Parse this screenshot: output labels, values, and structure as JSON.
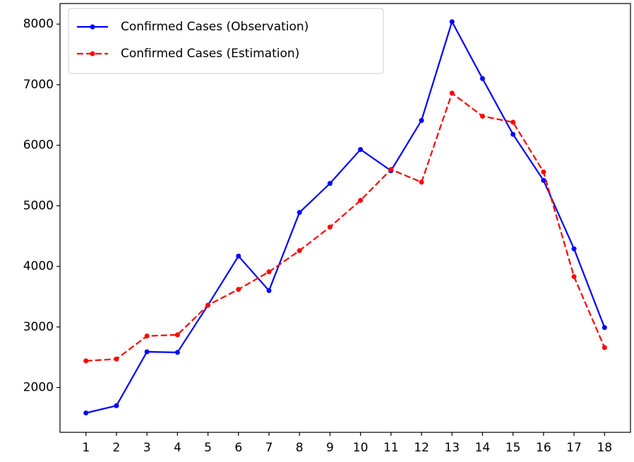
{
  "chart_data": {
    "type": "line",
    "x": [
      1,
      2,
      3,
      4,
      5,
      6,
      7,
      8,
      9,
      10,
      11,
      12,
      13,
      14,
      15,
      16,
      17,
      18
    ],
    "series": [
      {
        "name": "Confirmed Cases (Observation)",
        "color": "#0000ff",
        "linestyle": "solid",
        "values": [
          1580,
          1700,
          2590,
          2580,
          3360,
          4170,
          3600,
          4890,
          5370,
          5930,
          5580,
          6410,
          8040,
          7100,
          6180,
          5420,
          4290,
          2990
        ]
      },
      {
        "name": "Confirmed Cases (Estimation)",
        "color": "#ff0000",
        "linestyle": "dashed",
        "values": [
          2440,
          2470,
          2850,
          2870,
          3360,
          3620,
          3910,
          4260,
          4650,
          5090,
          5600,
          5390,
          6860,
          6480,
          6380,
          5560,
          3830,
          2660
        ]
      }
    ],
    "xlim": [
      0.15,
      18.85
    ],
    "xticks": [
      1,
      2,
      3,
      4,
      5,
      6,
      7,
      8,
      9,
      10,
      11,
      12,
      13,
      14,
      15,
      16,
      17,
      18
    ],
    "ylim": [
      1260,
      8340
    ],
    "yticks": [
      2000,
      3000,
      4000,
      5000,
      6000,
      7000,
      8000
    ],
    "legend": "upper left"
  }
}
